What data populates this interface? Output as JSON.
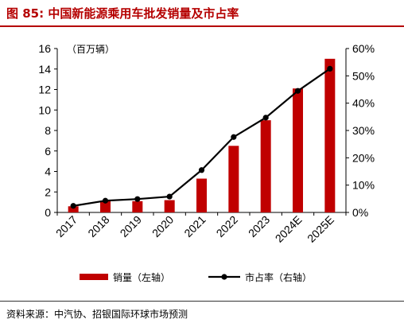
{
  "header": {
    "title": "图 85: 中国新能源乘用车批发销量及市占率"
  },
  "footer": {
    "source": "资料来源：中汽协、招银国际环球市场预测"
  },
  "colors": {
    "bar": "#c00000",
    "line": "#000000",
    "accent": "#b50000"
  },
  "chart_data": {
    "type": "bar",
    "title": "",
    "categories": [
      "2017",
      "2018",
      "2019",
      "2020",
      "2021",
      "2022",
      "2023",
      "2024E",
      "2025E"
    ],
    "y_left_unit": "（百万辆）",
    "y_left_ticks": [
      "0",
      "2",
      "4",
      "6",
      "8",
      "10",
      "12",
      "14",
      "16"
    ],
    "y_right_ticks": [
      "0%",
      "10%",
      "20%",
      "30%",
      "40%",
      "50%",
      "60%"
    ],
    "ylim_left": [
      0,
      16
    ],
    "ylim_right": [
      0,
      60
    ],
    "series": [
      {
        "name": "销量（左轴）",
        "type": "bar",
        "axis": "left",
        "values": [
          0.6,
          1.1,
          1.1,
          1.2,
          3.3,
          6.5,
          9.0,
          12.1,
          15.0
        ]
      },
      {
        "name": "市占率（右轴）",
        "type": "line",
        "axis": "right",
        "values": [
          2.4,
          4.3,
          4.9,
          5.8,
          15.5,
          27.6,
          34.7,
          44.5,
          52.6
        ]
      }
    ],
    "grid": false,
    "legend_position": "bottom"
  }
}
